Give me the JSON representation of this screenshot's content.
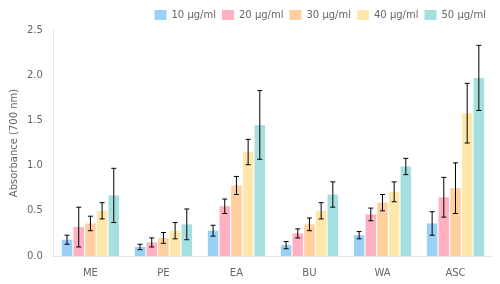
{
  "chart_data": {
    "type": "bar",
    "categories": [
      "ME",
      "PE",
      "EA",
      "BU",
      "WA",
      "ASC"
    ],
    "series": [
      {
        "name": "10 μg/ml",
        "values": [
          0.18,
          0.1,
          0.28,
          0.12,
          0.23,
          0.36
        ],
        "errors": [
          0.05,
          0.03,
          0.06,
          0.04,
          0.04,
          0.13
        ]
      },
      {
        "name": "20 μg/ml",
        "values": [
          0.32,
          0.15,
          0.55,
          0.25,
          0.46,
          0.65
        ],
        "errors": [
          0.22,
          0.05,
          0.08,
          0.05,
          0.07,
          0.22
        ]
      },
      {
        "name": "30 μg/ml",
        "values": [
          0.36,
          0.2,
          0.78,
          0.35,
          0.59,
          0.75
        ],
        "errors": [
          0.08,
          0.06,
          0.1,
          0.07,
          0.09,
          0.28
        ]
      },
      {
        "name": "40 μg/ml",
        "values": [
          0.5,
          0.28,
          1.15,
          0.5,
          0.71,
          1.58
        ],
        "errors": [
          0.09,
          0.09,
          0.14,
          0.09,
          0.11,
          0.33
        ]
      },
      {
        "name": "50 μg/ml",
        "values": [
          0.67,
          0.35,
          1.45,
          0.68,
          0.99,
          1.97
        ],
        "errors": [
          0.3,
          0.17,
          0.38,
          0.14,
          0.09,
          0.36
        ]
      }
    ],
    "ylabel": "Absorbance (700 nm)",
    "ylim": [
      0,
      2.5
    ],
    "yticks": [
      {
        "value": 0,
        "label": "0.0"
      },
      0.5,
      {
        "value": 1.0,
        "label": "1.0"
      },
      1.5,
      {
        "value": 2.0,
        "label": "2.0"
      },
      2.5
    ],
    "legend": "upper right",
    "grid": false
  }
}
